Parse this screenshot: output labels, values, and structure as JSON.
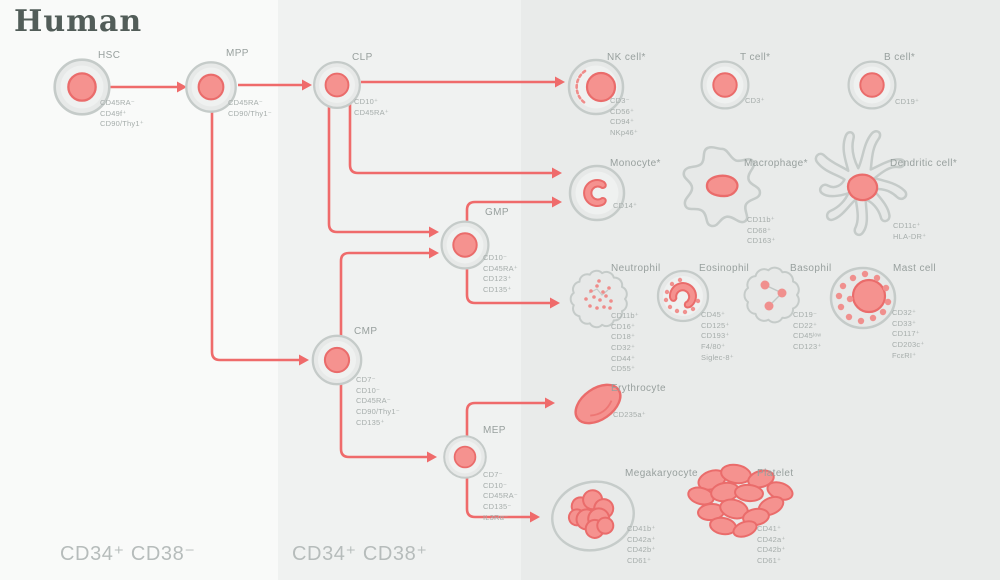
{
  "title": "Human",
  "bands": {
    "left_label": "CD34⁺ CD38⁻",
    "middle_label": "CD34⁺ CD38⁺"
  },
  "colors": {
    "accent_arrow": "#ef6b6b",
    "cell_body": "#e7e9e8",
    "cell_outline": "#c5cbc9",
    "nucleus": "#f5928f",
    "nucleus_outline": "#ea6c6b",
    "label_text": "#98a09e",
    "marker_text": "#a6adab",
    "band_left": "#f9faf9",
    "band_middle": "#f0f2f1",
    "band_right": "#e9ebea"
  },
  "nodes": {
    "hsc": {
      "name": "HSC",
      "markers": [
        "CD45RA⁻",
        "CD49f⁺",
        "CD90/Thy1⁺"
      ]
    },
    "mpp": {
      "name": "MPP",
      "markers": [
        "CD45RA⁻",
        "CD90/Thy1⁻"
      ]
    },
    "clp": {
      "name": "CLP",
      "markers": [
        "CD10⁺",
        "CD45RA⁺"
      ]
    },
    "cmp": {
      "name": "CMP",
      "markers": [
        "CD7⁻",
        "CD10⁻",
        "CD45RA⁻",
        "CD90/Thy1⁻",
        "CD135⁺"
      ]
    },
    "gmp": {
      "name": "GMP",
      "markers": [
        "CD10⁻",
        "CD45RA⁺",
        "CD123⁺",
        "CD135⁺"
      ]
    },
    "mep": {
      "name": "MEP",
      "markers": [
        "CD7⁻",
        "CD10⁻",
        "CD45RA⁻",
        "CD135⁻",
        "IL3Rα⁻"
      ]
    },
    "nk": {
      "name": "NK cell*",
      "markers": [
        "CD3⁻",
        "CD56⁺",
        "CD94⁺",
        "NKp46⁺"
      ]
    },
    "t": {
      "name": "T cell*",
      "markers": [
        "CD3⁺"
      ]
    },
    "b": {
      "name": "B cell*",
      "markers": [
        "CD19⁺"
      ]
    },
    "monocyte": {
      "name": "Monocyte*",
      "markers": [
        "CD14⁺"
      ]
    },
    "macrophage": {
      "name": "Macrophage*",
      "markers": [
        "CD11b⁺",
        "CD68⁺",
        "CD163⁺"
      ]
    },
    "dendritic": {
      "name": "Dendritic cell*",
      "markers": [
        "CD11c⁺",
        "HLA-DR⁺"
      ]
    },
    "neutrophil": {
      "name": "Neutrophil",
      "markers": [
        "CD11b⁺",
        "CD16⁺",
        "CD18⁺",
        "CD32⁺",
        "CD44⁺",
        "CD55⁺"
      ]
    },
    "eosinophil": {
      "name": "Eosinophil",
      "markers": [
        "CD45⁺",
        "CD125⁺",
        "CD193⁺",
        "F4/80⁺",
        "Siglec-8⁺"
      ]
    },
    "basophil": {
      "name": "Basophil",
      "markers": [
        "CD19⁻",
        "CD22⁺",
        "CD45ˡᵒʷ",
        "CD123⁺"
      ]
    },
    "mast": {
      "name": "Mast cell",
      "markers": [
        "CD32⁺",
        "CD33⁺",
        "CD117⁺",
        "CD203c⁺",
        "FcεRI⁺"
      ]
    },
    "erythrocyte": {
      "name": "Erythrocyte",
      "markers": [
        "CD235a⁺"
      ]
    },
    "megakaryocyte": {
      "name": "Megakaryocyte",
      "markers": [
        "CD41b⁺",
        "CD42a⁺",
        "CD42b⁺",
        "CD61⁺"
      ]
    },
    "platelet": {
      "name": "Platelet",
      "markers": [
        "CD41⁺",
        "CD42a⁺",
        "CD42b⁺",
        "CD61⁺"
      ]
    }
  }
}
